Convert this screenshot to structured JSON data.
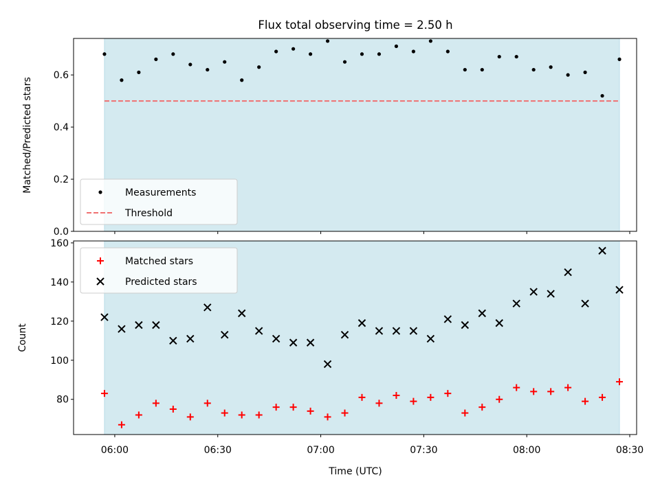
{
  "chart_data": [
    {
      "type": "scatter",
      "title": "Flux total observing time = 2.50 h",
      "ylabel": "Matched/Predicted stars",
      "xlabel": "",
      "ylim": [
        0,
        0.74
      ],
      "yticks": [
        0.0,
        0.2,
        0.4,
        0.6
      ],
      "ytick_labels": [
        "0.0",
        "0.2",
        "0.4",
        "0.6"
      ],
      "xtick_labels": [],
      "x_range_minutes_utc": [
        348,
        512
      ],
      "highlight_span_minutes_utc": [
        357,
        507
      ],
      "highlight_color": "#d4eaf0",
      "threshold": 0.5,
      "threshold_color": "#f07070",
      "legend": {
        "placement": "lower-left",
        "entries": [
          "Measurements",
          "Threshold"
        ]
      },
      "series": [
        {
          "name": "Measurements",
          "marker": "dot",
          "color": "#000000",
          "x": [
            "05:57",
            "06:02",
            "06:07",
            "06:12",
            "06:17",
            "06:22",
            "06:27",
            "06:32",
            "06:37",
            "06:42",
            "06:47",
            "06:52",
            "06:57",
            "07:02",
            "07:07",
            "07:12",
            "07:17",
            "07:22",
            "07:27",
            "07:32",
            "07:37",
            "07:42",
            "07:47",
            "07:52",
            "07:57",
            "08:02",
            "08:07",
            "08:12",
            "08:17",
            "08:22",
            "08:27"
          ],
          "values": [
            0.68,
            0.58,
            0.61,
            0.66,
            0.68,
            0.64,
            0.62,
            0.65,
            0.58,
            0.63,
            0.69,
            0.7,
            0.68,
            0.73,
            0.65,
            0.68,
            0.68,
            0.71,
            0.69,
            0.73,
            0.69,
            0.62,
            0.62,
            0.67,
            0.67,
            0.62,
            0.63,
            0.6,
            0.61,
            0.52,
            0.66
          ]
        }
      ]
    },
    {
      "type": "scatter",
      "title": "",
      "ylabel": "Count",
      "xlabel": "Time (UTC)",
      "ylim": [
        62,
        161
      ],
      "yticks": [
        80,
        100,
        120,
        140,
        160
      ],
      "ytick_labels": [
        "80",
        "100",
        "120",
        "140",
        "160"
      ],
      "x_range_minutes_utc": [
        348,
        512
      ],
      "xticks": [
        "06:00",
        "06:30",
        "07:00",
        "07:30",
        "08:00",
        "08:30"
      ],
      "xtick_labels": [
        "06:00",
        "06:30",
        "07:00",
        "07:30",
        "08:00",
        "08:30"
      ],
      "highlight_span_minutes_utc": [
        357,
        507
      ],
      "highlight_color": "#d4eaf0",
      "legend": {
        "placement": "top-left",
        "entries": [
          "Matched stars",
          "Predicted stars"
        ]
      },
      "series": [
        {
          "name": "Matched stars",
          "marker": "plus",
          "color": "#ff0000",
          "x": [
            "05:57",
            "06:02",
            "06:07",
            "06:12",
            "06:17",
            "06:22",
            "06:27",
            "06:32",
            "06:37",
            "06:42",
            "06:47",
            "06:52",
            "06:57",
            "07:02",
            "07:07",
            "07:12",
            "07:17",
            "07:22",
            "07:27",
            "07:32",
            "07:37",
            "07:42",
            "07:47",
            "07:52",
            "07:57",
            "08:02",
            "08:07",
            "08:12",
            "08:17",
            "08:22",
            "08:27"
          ],
          "values": [
            83,
            67,
            72,
            78,
            75,
            71,
            78,
            73,
            72,
            72,
            76,
            76,
            74,
            71,
            73,
            81,
            78,
            82,
            79,
            81,
            83,
            73,
            76,
            80,
            86,
            84,
            84,
            86,
            79,
            81,
            89
          ]
        },
        {
          "name": "Predicted stars",
          "marker": "x",
          "color": "#000000",
          "x": [
            "05:57",
            "06:02",
            "06:07",
            "06:12",
            "06:17",
            "06:22",
            "06:27",
            "06:32",
            "06:37",
            "06:42",
            "06:47",
            "06:52",
            "06:57",
            "07:02",
            "07:07",
            "07:12",
            "07:17",
            "07:22",
            "07:27",
            "07:32",
            "07:37",
            "07:42",
            "07:47",
            "07:52",
            "07:57",
            "08:02",
            "08:07",
            "08:12",
            "08:17",
            "08:22",
            "08:27"
          ],
          "values": [
            122,
            116,
            118,
            118,
            110,
            111,
            127,
            113,
            124,
            115,
            111,
            109,
            109,
            98,
            113,
            119,
            115,
            115,
            115,
            111,
            121,
            118,
            124,
            119,
            129,
            135,
            134,
            145,
            129,
            156,
            136
          ]
        }
      ]
    }
  ]
}
